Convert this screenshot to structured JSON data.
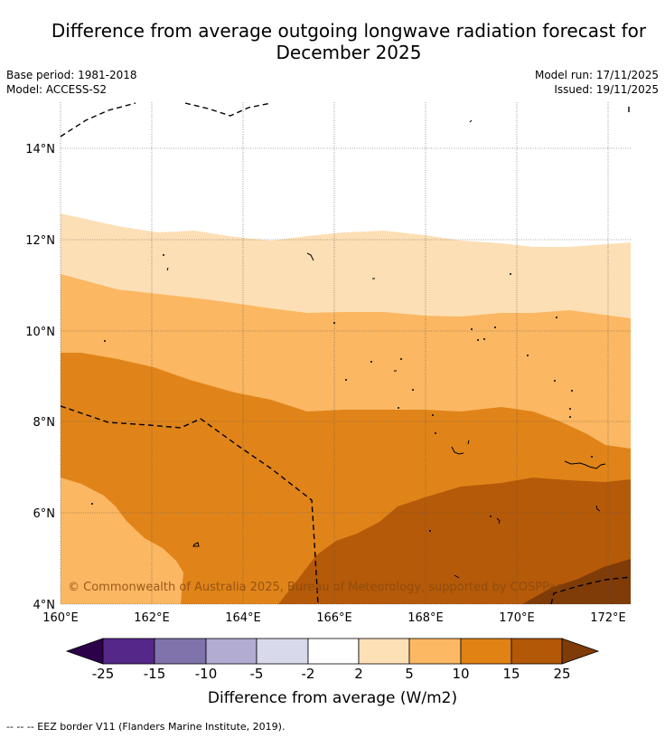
{
  "header": {
    "title_line1": "Difference from average outgoing longwave radiation forecast for",
    "title_line2": "December 2025",
    "base_period": "Base period: 1981-2018",
    "model": "Model: ACCESS-S2",
    "model_run": "Model run: 17/11/2025",
    "issued": "Issued: 19/11/2025"
  },
  "map": {
    "region": {
      "lon_min": 160,
      "lon_max": 172.5,
      "lat_min": 4,
      "lat_max": 15
    },
    "x_ticks": [
      "160°E",
      "162°E",
      "164°E",
      "166°E",
      "168°E",
      "170°E",
      "172°E"
    ],
    "y_ticks": [
      "4°N",
      "6°N",
      "8°N",
      "10°N",
      "12°N",
      "14°N"
    ],
    "copyright": "© Commonwealth of Australia 2025, Bureau of Meteorology, supported by COSPPac",
    "bands": [
      {
        "range": "2 to 5",
        "color": "#fddfb5"
      },
      {
        "range": "5 to 10",
        "color": "#fbb762"
      },
      {
        "range": "10 to 15",
        "color": "#e08419"
      },
      {
        "range": "15 to 25",
        "color": "#b55a08"
      },
      {
        "range": "> 25",
        "color": "#7f3b08"
      }
    ]
  },
  "colorbar": {
    "title": "Difference from average (W/m2)",
    "ticks": [
      "-25",
      "-15",
      "-10",
      "-5",
      "-2",
      "2",
      "5",
      "10",
      "15",
      "25"
    ],
    "colors": [
      "#2d004b",
      "#542788",
      "#8073ac",
      "#b2abd2",
      "#d8daeb",
      "#ffffff",
      "#fee0b6",
      "#fdb863",
      "#e08214",
      "#b35806",
      "#7f3b08"
    ]
  },
  "footnote": "--  --  -- EEZ border V11 (Flanders Marine Institute, 2019)."
}
